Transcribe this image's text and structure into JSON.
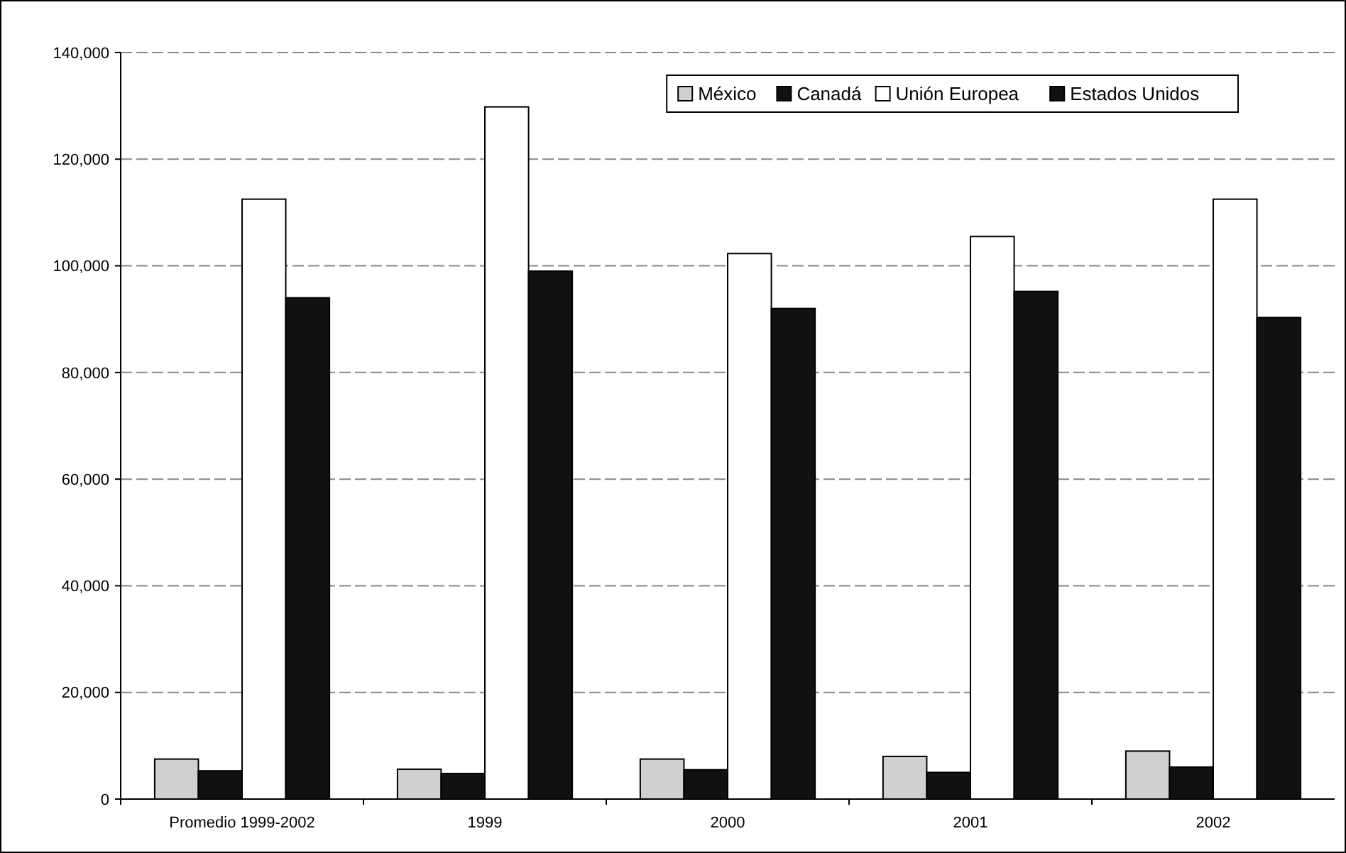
{
  "chart_data": {
    "type": "bar",
    "categories": [
      "Promedio 1999-2002",
      "1999",
      "2000",
      "2001",
      "2002"
    ],
    "series": [
      {
        "name": "México",
        "color": "#d0d0d0",
        "values": [
          7500,
          5600,
          7500,
          8000,
          9000
        ]
      },
      {
        "name": "Canadá",
        "color": "#111111",
        "values": [
          5300,
          4800,
          5500,
          5000,
          6000
        ]
      },
      {
        "name": "Unión Europea",
        "color": "#ffffff",
        "values": [
          112500,
          129800,
          102300,
          105500,
          112500
        ]
      },
      {
        "name": "Estados Unidos",
        "color": "#111111",
        "values": [
          94000,
          99000,
          92000,
          95200,
          90300
        ]
      }
    ],
    "ylim": [
      0,
      140000
    ],
    "yticks": [
      {
        "value": 0,
        "label": "0"
      },
      {
        "value": 20000,
        "label": "20,000"
      },
      {
        "value": 40000,
        "label": "40,000"
      },
      {
        "value": 60000,
        "label": "60,000"
      },
      {
        "value": 80000,
        "label": "80,000"
      },
      {
        "value": 100000,
        "label": "100,000"
      },
      {
        "value": 120000,
        "label": "120,000"
      },
      {
        "value": 140000,
        "label": "140,000"
      }
    ],
    "grid": "y",
    "legend": "top right"
  }
}
